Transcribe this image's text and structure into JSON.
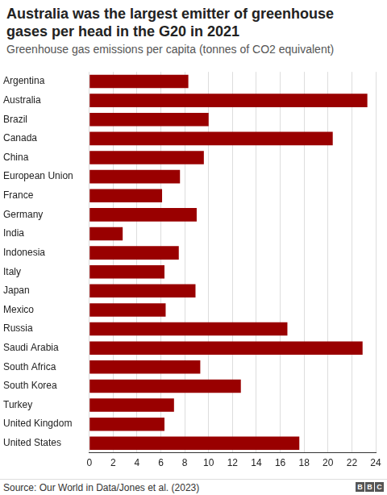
{
  "chart_data": {
    "type": "bar",
    "orientation": "horizontal",
    "title": "Australia was the largest emitter of greenhouse gases per head in the G20 in 2021",
    "subtitle": "Greenhouse gas emissions per capita (tonnes of CO2 equivalent)",
    "source": "Source: Our World in Data/Jones et al. (2023)",
    "logo": "BBC",
    "categories": [
      "Argentina",
      "Australia",
      "Brazil",
      "Canada",
      "China",
      "European Union",
      "France",
      "Germany",
      "India",
      "Indonesia",
      "Italy",
      "Japan",
      "Mexico",
      "Russia",
      "Saudi Arabia",
      "South Africa",
      "South Korea",
      "Turkey",
      "United Kingdom",
      "United States"
    ],
    "values": [
      8.3,
      23.3,
      10.0,
      20.4,
      9.6,
      7.6,
      6.1,
      9.0,
      2.8,
      7.5,
      6.3,
      8.9,
      6.4,
      16.6,
      22.9,
      9.3,
      12.7,
      7.1,
      6.3,
      17.6
    ],
    "color": "#990000",
    "xlim": [
      0,
      24
    ],
    "xticks": [
      0,
      2,
      4,
      6,
      8,
      10,
      12,
      14,
      16,
      18,
      20,
      22,
      24
    ],
    "grid": true
  }
}
